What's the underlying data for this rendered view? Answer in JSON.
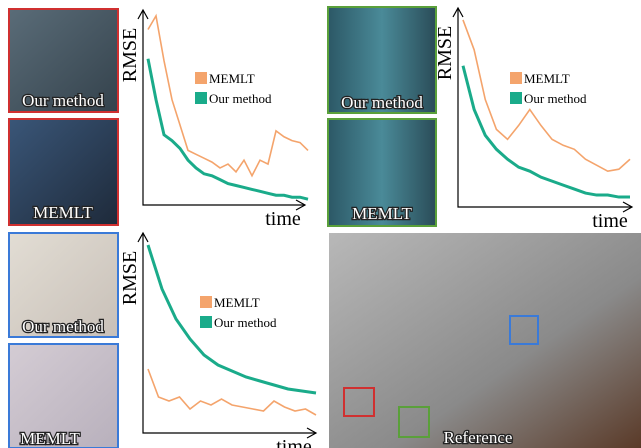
{
  "chart_data": [
    {
      "type": "line",
      "x_label": "time",
      "y_label": "RMSE",
      "ylim": [
        0,
        100
      ],
      "series": [
        {
          "name": "MEMLT",
          "color": "#f4a46c",
          "values": [
            90,
            97,
            74,
            54,
            41,
            28,
            26,
            24,
            22,
            19,
            21,
            17,
            23,
            15,
            23,
            21,
            38,
            35,
            33,
            32,
            28
          ]
        },
        {
          "name": "Our method",
          "color": "#1aab8a",
          "values": [
            75,
            54,
            36,
            33,
            29,
            23,
            19,
            16,
            15,
            13,
            11,
            10,
            9,
            8,
            7,
            6,
            5,
            5,
            4,
            4,
            3
          ]
        }
      ]
    },
    {
      "type": "line",
      "x_label": "time",
      "y_label": "RMSE",
      "ylim": [
        0,
        100
      ],
      "series": [
        {
          "name": "MEMLT",
          "color": "#f4a46c",
          "values": [
            94,
            79,
            54,
            39,
            34,
            41,
            49,
            41,
            34,
            31,
            29,
            24,
            21,
            18,
            19,
            24
          ]
        },
        {
          "name": "Our method",
          "color": "#1aab8a",
          "values": [
            71,
            49,
            36,
            29,
            24,
            20,
            18,
            15,
            13,
            11,
            9,
            7,
            6,
            6,
            5,
            5
          ]
        }
      ]
    },
    {
      "type": "line",
      "x_label": "time",
      "y_label": "RMSE",
      "ylim": [
        0,
        100
      ],
      "series": [
        {
          "name": "MEMLT",
          "color": "#f4a46c",
          "values": [
            32,
            18,
            16,
            18,
            12,
            16,
            14,
            17,
            14,
            13,
            12,
            11,
            16,
            13,
            11,
            12,
            9
          ]
        },
        {
          "name": "Our method",
          "color": "#1aab8a",
          "values": [
            94,
            72,
            57,
            47,
            39,
            34,
            31,
            28,
            26,
            24,
            22,
            21,
            20
          ]
        }
      ]
    }
  ],
  "image_labels": [
    "Our method",
    "MEMLT",
    "Our method",
    "MEMLT",
    "Our method",
    "MEMLT",
    "Reference"
  ]
}
